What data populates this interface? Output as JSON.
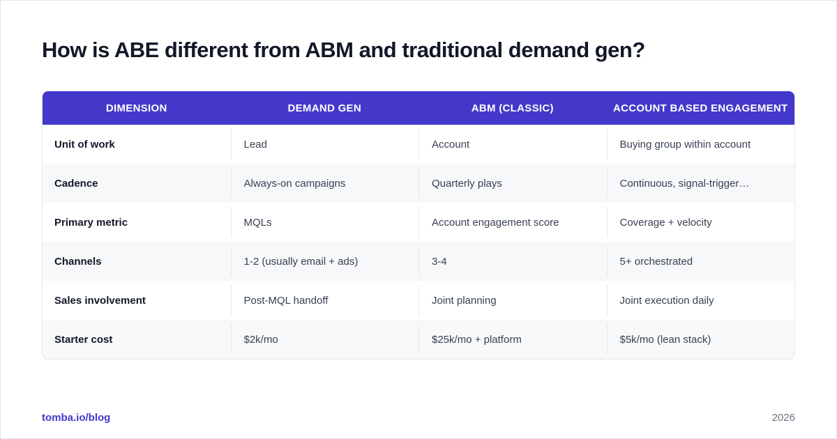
{
  "title": "How is ABE different from ABM and traditional demand gen?",
  "table": {
    "headers": [
      "DIMENSION",
      "DEMAND GEN",
      "ABM (CLASSIC)",
      "ACCOUNT BASED ENGAGEMENT"
    ],
    "rows": [
      [
        "Unit of work",
        "Lead",
        "Account",
        "Buying group within account"
      ],
      [
        "Cadence",
        "Always-on campaigns",
        "Quarterly plays",
        "Continuous, signal-trigger…"
      ],
      [
        "Primary metric",
        "MQLs",
        "Account engagement score",
        "Coverage + velocity"
      ],
      [
        "Channels",
        "1-2 (usually email + ads)",
        "3-4",
        "5+ orchestrated"
      ],
      [
        "Sales involvement",
        "Post-MQL handoff",
        "Joint planning",
        "Joint execution daily"
      ],
      [
        "Starter cost",
        "$2k/mo",
        "$25k/mo + platform",
        "$5k/mo (lean stack)"
      ]
    ]
  },
  "footer": {
    "link": "tomba.io/blog",
    "year": "2026"
  },
  "colors": {
    "accent": "#4338ca",
    "title": "#111827",
    "row_alt": "#f7f8fa"
  }
}
